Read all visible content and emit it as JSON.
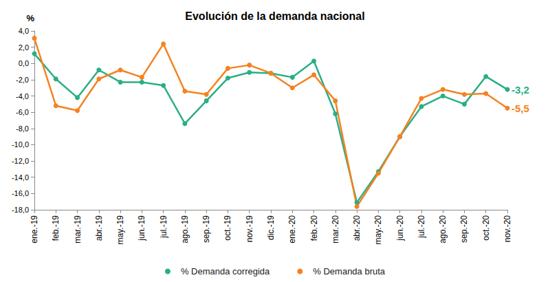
{
  "chart_data": {
    "type": "line",
    "title": "Evolución de la demanda nacional",
    "ylabel": "%",
    "categories": [
      "ene.-19",
      "feb.-19",
      "mar.-19",
      "abr.-19",
      "may.-19",
      "jun.-19",
      "jul.-19",
      "ago.-19",
      "sep.-19",
      "oct.-19",
      "nov.-19",
      "dic.-19",
      "ene.-20",
      "feb.-20",
      "mar.-20",
      "abr.-20",
      "may.-20",
      "jun.-20",
      "jul.-20",
      "ago.-20",
      "sep.-20",
      "oct.-20",
      "nov.-20"
    ],
    "series": [
      {
        "name": "% Demanda corregida",
        "color": "#2aae86",
        "marker": "circle",
        "values": [
          1.2,
          -1.9,
          -4.2,
          -0.8,
          -2.3,
          -2.3,
          -2.7,
          -7.4,
          -4.6,
          -1.8,
          -1.1,
          -1.2,
          -1.7,
          0.3,
          -6.2,
          -17.1,
          -13.3,
          -9.0,
          -5.3,
          -4.0,
          -5.0,
          -1.6,
          -3.2
        ]
      },
      {
        "name": "% Demanda bruta",
        "color": "#f58220",
        "marker": "circle",
        "values": [
          3.1,
          -5.2,
          -5.8,
          -1.9,
          -0.8,
          -1.7,
          2.4,
          -3.4,
          -3.8,
          -0.6,
          -0.2,
          -1.2,
          -3.0,
          -1.4,
          -4.6,
          -17.6,
          -13.5,
          -9.0,
          -4.3,
          -3.2,
          -3.8,
          -3.7,
          -5.5
        ]
      }
    ],
    "annotations": [
      {
        "series": "% Demanda corregida",
        "text": "-3,2"
      },
      {
        "series": "% Demanda bruta",
        "text": "-5,5"
      }
    ],
    "ylim": [
      -18,
      4
    ],
    "yticks": [
      {
        "value": -18,
        "label": "-18,0"
      },
      {
        "value": -16,
        "label": "-16,0"
      },
      {
        "value": -14,
        "label": "-14,0"
      },
      {
        "value": -12,
        "label": "-12,0"
      },
      {
        "value": -10,
        "label": "-10,0"
      },
      {
        "value": -8,
        "label": "-8,0"
      },
      {
        "value": -6,
        "label": "-6,0"
      },
      {
        "value": -4,
        "label": "-4,0"
      },
      {
        "value": -2,
        "label": "-2,0"
      },
      {
        "value": 0,
        "label": "0,0"
      },
      {
        "value": 2,
        "label": "2,0"
      },
      {
        "value": 4,
        "label": "4,0"
      }
    ],
    "grid": false,
    "legend": "bottom"
  }
}
